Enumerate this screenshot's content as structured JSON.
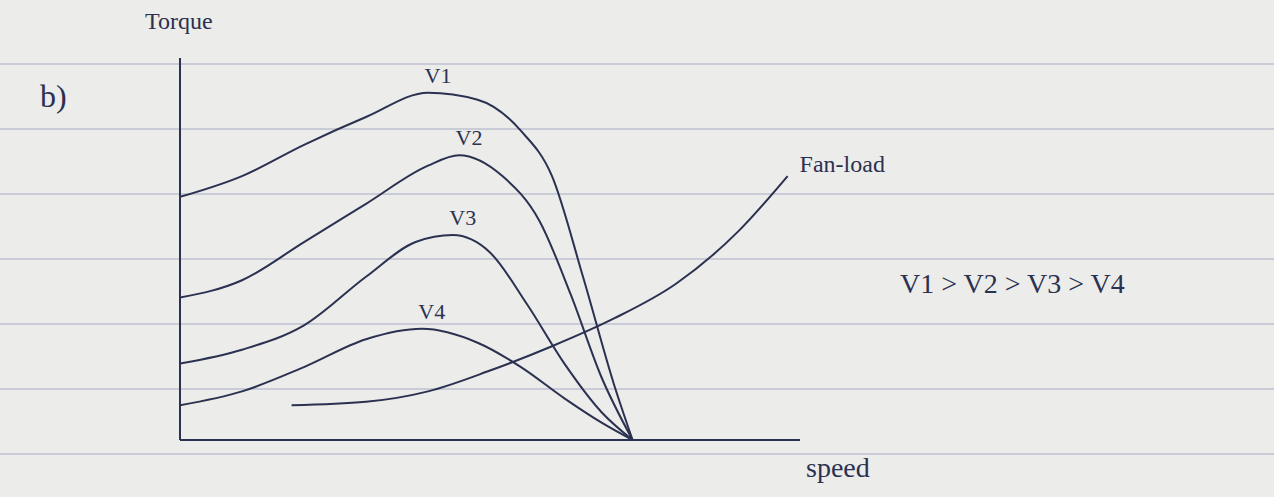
{
  "chart_data": {
    "type": "line",
    "title": "b)",
    "xlabel": "speed",
    "ylabel": "Torque",
    "xlim": [
      0,
      100
    ],
    "ylim": [
      0,
      110
    ],
    "grid": false,
    "tick_labels": false,
    "annotations": [
      "V1 > V2 > V3 > V4"
    ],
    "series": [
      {
        "name": "V1",
        "color": "#2b3150",
        "x": [
          0,
          10,
          20,
          30,
          40,
          48,
          55,
          60,
          65,
          70,
          73
        ],
        "values": [
          70,
          76,
          85,
          93,
          100,
          98,
          89,
          76,
          47,
          16,
          0
        ]
      },
      {
        "name": "V2",
        "color": "#2b3150",
        "x": [
          0,
          10,
          20,
          30,
          40,
          45,
          52,
          58,
          63,
          68,
          73
        ],
        "values": [
          41,
          46,
          57,
          68,
          79,
          82,
          76,
          63,
          42,
          18,
          0
        ]
      },
      {
        "name": "V3",
        "color": "#2b3150",
        "x": [
          0,
          10,
          20,
          30,
          38,
          44,
          50,
          56,
          62,
          68,
          73
        ],
        "values": [
          22,
          26,
          33,
          47,
          57,
          59,
          54,
          39,
          22,
          8,
          0
        ]
      },
      {
        "name": "V4",
        "color": "#2b3150",
        "x": [
          0,
          10,
          20,
          30,
          39,
          48,
          55,
          62,
          68,
          73
        ],
        "values": [
          10,
          14,
          21,
          29,
          32,
          28,
          21,
          12,
          5,
          0
        ]
      },
      {
        "name": "Fan-load",
        "color": "#2b3150",
        "x": [
          18,
          30,
          40,
          50,
          60,
          70,
          80,
          90,
          98
        ],
        "values": [
          10,
          11,
          14,
          20,
          27,
          35,
          45,
          60,
          76
        ]
      }
    ]
  }
}
